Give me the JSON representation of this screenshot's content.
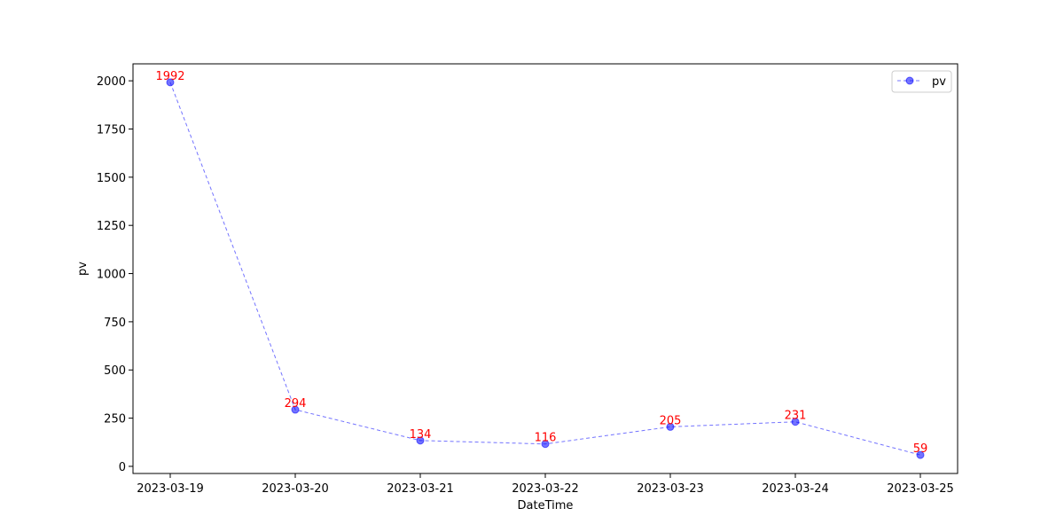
{
  "chart_data": {
    "type": "line",
    "title": "",
    "xlabel": "DateTime",
    "ylabel": "pv",
    "categories": [
      "2023-03-19",
      "2023-03-20",
      "2023-03-21",
      "2023-03-22",
      "2023-03-23",
      "2023-03-24",
      "2023-03-25"
    ],
    "series": [
      {
        "name": "pv",
        "values": [
          1992,
          294,
          134,
          116,
          205,
          231,
          59
        ]
      }
    ],
    "yticks": [
      0,
      250,
      500,
      750,
      1000,
      1250,
      1500,
      1750,
      2000
    ],
    "ylim": [
      -37,
      2088
    ],
    "grid": false,
    "legend_position": "top-right",
    "line_style": "dashed",
    "marker": "circle",
    "show_data_labels": true,
    "colors": {
      "series": "#0000ff",
      "data_label": "#ff0000",
      "axes": "#000000",
      "background": "#ffffff"
    }
  }
}
